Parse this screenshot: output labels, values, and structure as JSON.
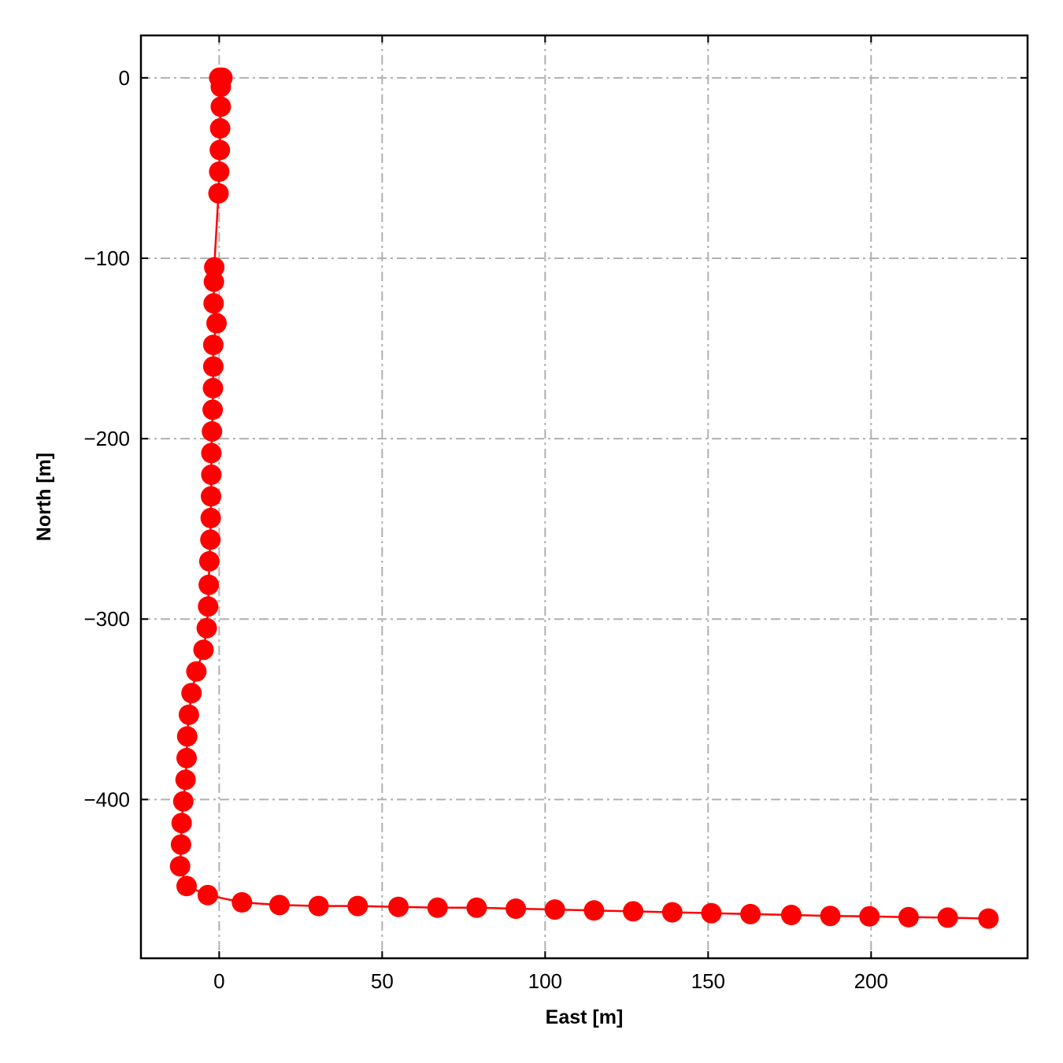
{
  "chart_data": {
    "type": "scatter",
    "xlabel": "East [m]",
    "ylabel": "North [m]",
    "xlim": [
      -24,
      248
    ],
    "ylim": [
      -488,
      23.5
    ],
    "xticks": [
      0,
      50,
      100,
      150,
      200
    ],
    "yticks": [
      0,
      -100,
      -200,
      -300,
      -400
    ],
    "xtick_labels": [
      "0",
      "50",
      "100",
      "150",
      "200"
    ],
    "ytick_labels": [
      "0",
      "−100",
      "−200",
      "−300",
      "−400"
    ],
    "grid": true,
    "series": [
      {
        "color": "#ff0000",
        "marker": "circle",
        "line": true,
        "points": [
          [
            0,
            0
          ],
          [
            0.5,
            0
          ],
          [
            1,
            0
          ],
          [
            0.5,
            -5
          ],
          [
            0.5,
            -16
          ],
          [
            0.3,
            -28
          ],
          [
            0.2,
            -40
          ],
          [
            0,
            -52
          ],
          [
            -0.2,
            -64
          ],
          [
            -1.5,
            -105
          ],
          [
            -1.6,
            -113
          ],
          [
            -1.7,
            -125
          ],
          [
            -0.8,
            -136
          ],
          [
            -1.8,
            -148
          ],
          [
            -1.8,
            -160
          ],
          [
            -1.9,
            -172
          ],
          [
            -2,
            -184
          ],
          [
            -2.2,
            -196
          ],
          [
            -2.4,
            -208
          ],
          [
            -2.4,
            -220
          ],
          [
            -2.5,
            -232
          ],
          [
            -2.6,
            -244
          ],
          [
            -2.7,
            -256
          ],
          [
            -3,
            -268
          ],
          [
            -3.2,
            -281
          ],
          [
            -3.4,
            -293
          ],
          [
            -3.8,
            -305
          ],
          [
            -4.8,
            -317
          ],
          [
            -7,
            -329
          ],
          [
            -8.5,
            -341
          ],
          [
            -9.3,
            -353
          ],
          [
            -9.8,
            -365
          ],
          [
            -10,
            -377
          ],
          [
            -10.3,
            -389
          ],
          [
            -11,
            -401
          ],
          [
            -11.5,
            -413
          ],
          [
            -11.7,
            -425
          ],
          [
            -12,
            -437
          ],
          [
            -10,
            -448
          ],
          [
            -3.5,
            -453
          ],
          [
            7,
            -457
          ],
          [
            18.5,
            -458.5
          ],
          [
            30.5,
            -459
          ],
          [
            42.5,
            -459
          ],
          [
            55,
            -459.5
          ],
          [
            67,
            -460
          ],
          [
            79,
            -460
          ],
          [
            91,
            -460.5
          ],
          [
            103,
            -461
          ],
          [
            115,
            -461.5
          ],
          [
            127,
            -462
          ],
          [
            139,
            -462.5
          ],
          [
            151,
            -463
          ],
          [
            163,
            -463.5
          ],
          [
            175.5,
            -464
          ],
          [
            187.5,
            -464.5
          ],
          [
            199.5,
            -464.8
          ],
          [
            211.5,
            -465.2
          ],
          [
            223.5,
            -465.5
          ],
          [
            236,
            -466
          ]
        ]
      }
    ]
  }
}
